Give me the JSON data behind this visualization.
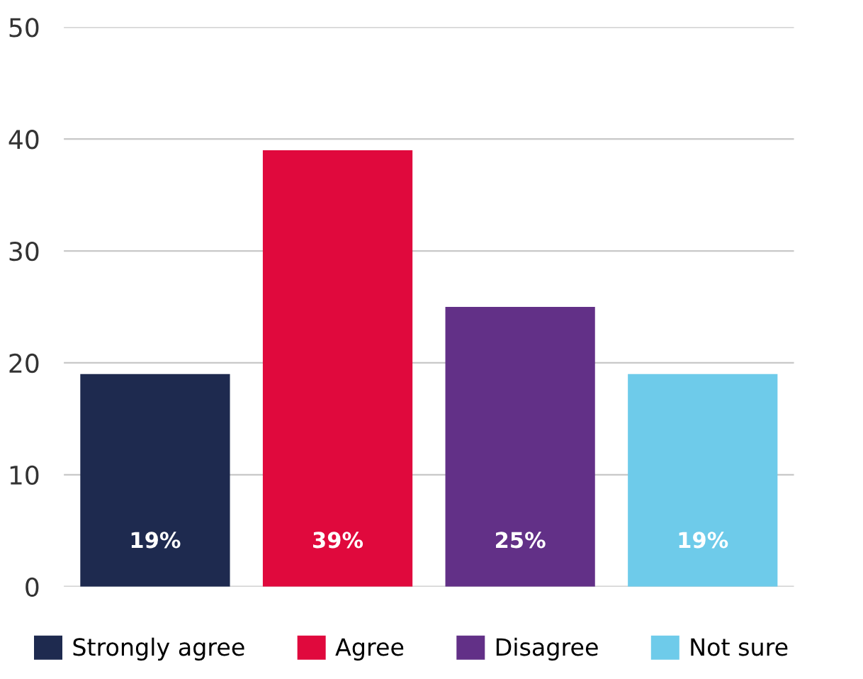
{
  "chart_data": {
    "type": "bar",
    "categories": [
      null,
      null,
      null,
      null
    ],
    "series": [
      {
        "name": "Strongly agree",
        "color": "#1e2a4f",
        "values": [
          19,
          null,
          null,
          null
        ],
        "value_labels": [
          "19%",
          null,
          null,
          null
        ]
      },
      {
        "name": "Agree",
        "color": "#e0093d",
        "values": [
          null,
          39,
          null,
          null
        ],
        "value_labels": [
          null,
          "39%",
          null,
          null
        ]
      },
      {
        "name": "Disagree",
        "color": "#623087",
        "values": [
          null,
          null,
          25,
          null
        ],
        "value_labels": [
          null,
          null,
          "25%",
          null
        ]
      },
      {
        "name": "Not sure",
        "color": "#6ecbea",
        "values": [
          null,
          null,
          null,
          19
        ],
        "value_labels": [
          null,
          null,
          null,
          "19%"
        ]
      }
    ],
    "ylim": [
      0,
      50
    ],
    "yticks": [
      0,
      10,
      20,
      30,
      40,
      50
    ],
    "grid": "y",
    "legend": "bottom"
  }
}
